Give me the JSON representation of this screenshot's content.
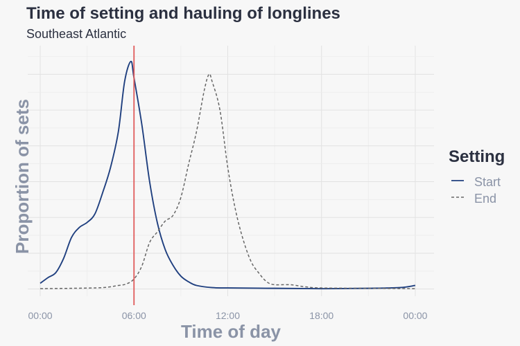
{
  "chart_data": {
    "type": "line",
    "title": "Time of setting and hauling of longlines",
    "subtitle": "Southeast Atlantic",
    "xlabel": "Time of day",
    "ylabel": "Proportion of sets",
    "x_unit": "hours",
    "xlim": [
      -0.8,
      25.2
    ],
    "ylim": [
      -0.01,
      0.34
    ],
    "x_ticks": [
      {
        "value": 0,
        "label": "00:00"
      },
      {
        "value": 6,
        "label": "06:00"
      },
      {
        "value": 12,
        "label": "12:00"
      },
      {
        "value": 18,
        "label": "18:00"
      },
      {
        "value": 24,
        "label": "00:00"
      }
    ],
    "y_ticks_labeled": false,
    "grid": true,
    "legend": {
      "title": "Setting",
      "position": "right",
      "entries": [
        {
          "label": "Start",
          "style": "solid"
        },
        {
          "label": "End",
          "style": "dashed"
        }
      ]
    },
    "reference_line": {
      "x": 6,
      "color": "#e05a5a"
    },
    "series": [
      {
        "name": "Start",
        "style": "solid",
        "color": "#1f3f7f",
        "x": [
          0,
          0.5,
          1,
          1.5,
          2,
          2.5,
          3,
          3.5,
          4,
          4.5,
          5,
          5.4,
          5.8,
          6,
          6.5,
          7,
          7.5,
          8,
          8.5,
          9,
          9.5,
          10,
          11,
          12,
          15,
          18,
          21,
          23,
          24
        ],
        "y": [
          0.008,
          0.016,
          0.023,
          0.043,
          0.072,
          0.086,
          0.093,
          0.105,
          0.135,
          0.17,
          0.22,
          0.29,
          0.318,
          0.295,
          0.23,
          0.15,
          0.092,
          0.055,
          0.033,
          0.018,
          0.01,
          0.005,
          0.002,
          0.0015,
          0.001,
          0.0005,
          0.001,
          0.002,
          0.005
        ]
      },
      {
        "name": "End",
        "style": "dashed",
        "color": "#666666",
        "x": [
          0,
          2,
          4,
          5,
          5.5,
          6,
          6.5,
          7,
          7.5,
          8,
          8.5,
          9,
          9.5,
          10,
          10.5,
          10.8,
          11,
          11.5,
          12,
          12.5,
          13,
          13.5,
          14,
          14.5,
          15,
          16,
          17,
          18,
          21,
          24
        ],
        "y": [
          0.0005,
          0.001,
          0.002,
          0.005,
          0.007,
          0.014,
          0.032,
          0.065,
          0.08,
          0.095,
          0.103,
          0.128,
          0.175,
          0.22,
          0.278,
          0.3,
          0.29,
          0.25,
          0.17,
          0.11,
          0.068,
          0.038,
          0.022,
          0.01,
          0.006,
          0.006,
          0.003,
          0.0015,
          0.001,
          0.0005
        ]
      }
    ]
  }
}
